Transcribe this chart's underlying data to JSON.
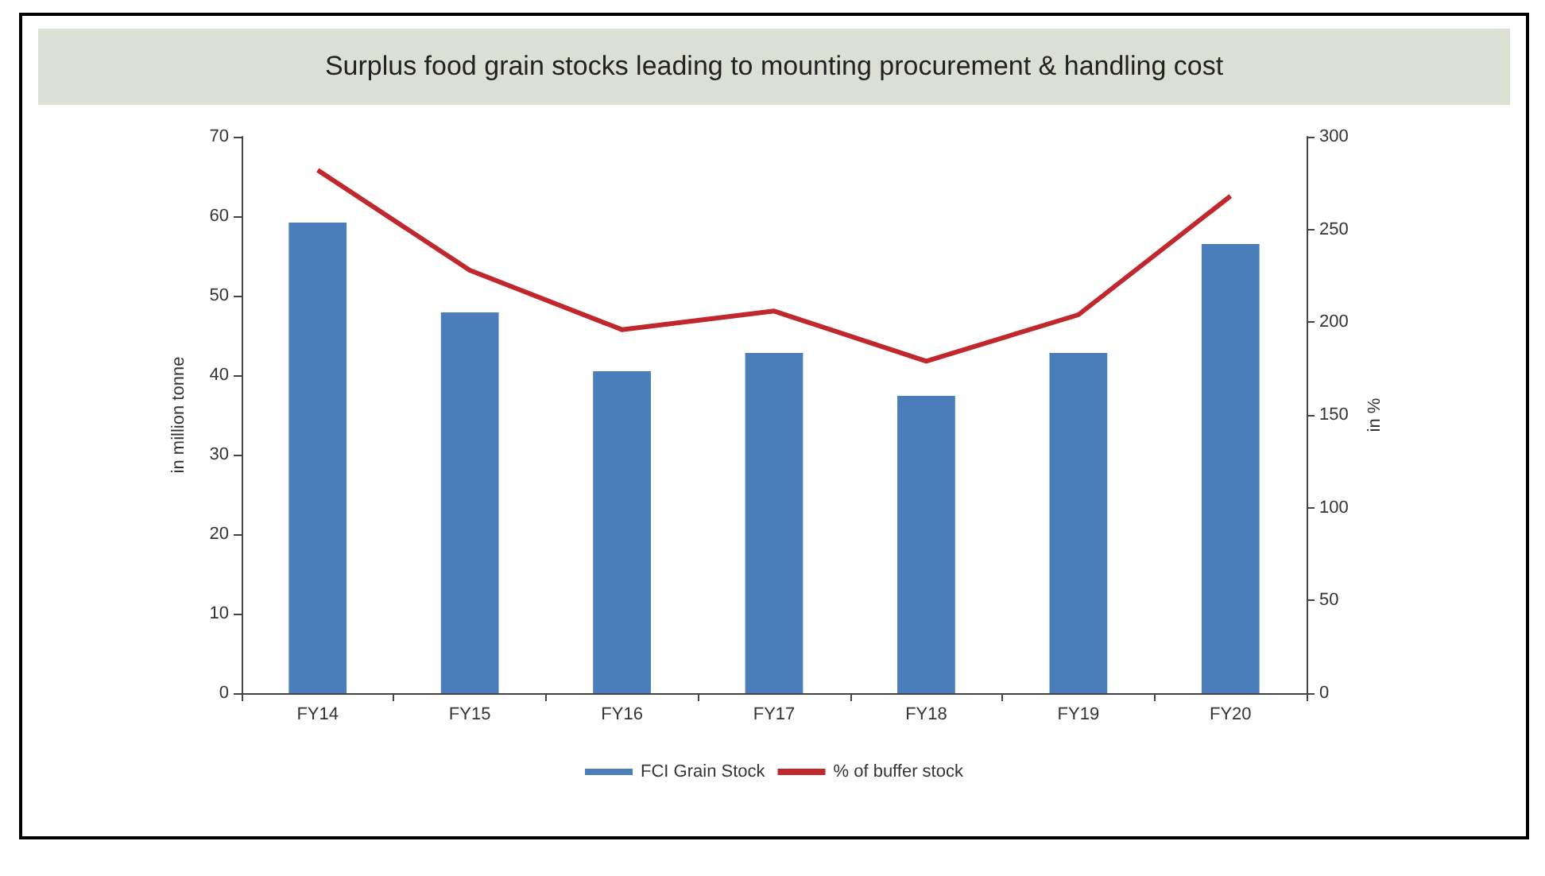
{
  "chart_data": {
    "type": "bar",
    "title": "Surplus food grain stocks leading to mounting procurement & handling cost",
    "categories": [
      "FY14",
      "FY15",
      "FY16",
      "FY17",
      "FY18",
      "FY19",
      "FY20"
    ],
    "series": [
      {
        "name": "FCI Grain Stock",
        "color": "#4a7ebb",
        "values": [
          59.2,
          47.9,
          40.5,
          42.8,
          37.4,
          42.8,
          56.5
        ]
      },
      {
        "name": "% of buffer stock",
        "type": "line",
        "axis": "y2",
        "color": "#c0282d",
        "marker": "none",
        "values": [
          282,
          228,
          196,
          206,
          179,
          204,
          268
        ]
      }
    ],
    "ylabel": "in million tonne",
    "y2label": "in %",
    "ylim": [
      0,
      70
    ],
    "yticks": [
      0,
      10,
      20,
      30,
      40,
      50,
      60,
      70
    ],
    "y2lim": [
      0,
      300
    ],
    "y2ticks": [
      0,
      50,
      100,
      150,
      200,
      250,
      300
    ],
    "grid": false,
    "legend": "bottom"
  }
}
